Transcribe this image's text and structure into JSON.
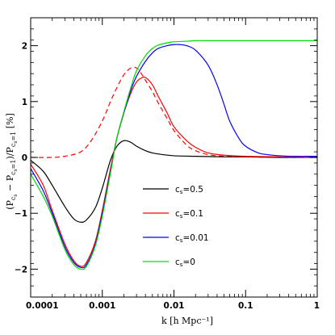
{
  "chart_data": {
    "type": "line",
    "xscale": "log",
    "xlim": [
      0.0001,
      1
    ],
    "ylim": [
      -2.5,
      2.5
    ],
    "xlabel": "k [h Mpc⁻¹]",
    "ylabel": {
      "main": "(P",
      "sub1": "c",
      "subsub1": "s",
      "mid": " − P",
      "sub2": "c",
      "subsub2": "s",
      "sub2rest": "=1",
      "mid2": ")/P",
      "sub3": "c",
      "subsub3": "s",
      "sub3rest": "=1",
      "unit": " [%]"
    },
    "xticks": [
      {
        "value": 0.0001,
        "label": "0.0001"
      },
      {
        "value": 0.001,
        "label": "0.001"
      },
      {
        "value": 0.01,
        "label": "0.01"
      },
      {
        "value": 0.1,
        "label": "0.1"
      },
      {
        "value": 1,
        "label": "1"
      }
    ],
    "yticks": [
      {
        "value": -2,
        "label": "−2"
      },
      {
        "value": -1,
        "label": "−1"
      },
      {
        "value": 0,
        "label": "0"
      },
      {
        "value": 1,
        "label": "1"
      },
      {
        "value": 2,
        "label": "2"
      }
    ],
    "legend_position": "center-right",
    "series": [
      {
        "name": "c_s=0.5",
        "legend": {
          "c": "c",
          "sub": "s",
          "rest": "=0.5"
        },
        "color": "#000000",
        "dash": false,
        "x": [
          0.0001,
          0.00015,
          0.0002,
          0.0003,
          0.0004,
          0.0005,
          0.0006,
          0.0008,
          0.001,
          0.0013,
          0.0016,
          0.002,
          0.0025,
          0.003,
          0.004,
          0.005,
          0.007,
          0.01,
          0.02,
          0.05,
          0.1,
          0.3,
          1
        ],
        "y": [
          -0.05,
          -0.25,
          -0.5,
          -0.88,
          -1.1,
          -1.16,
          -1.12,
          -0.9,
          -0.55,
          -0.05,
          0.2,
          0.3,
          0.27,
          0.2,
          0.12,
          0.08,
          0.05,
          0.03,
          0.02,
          0.01,
          0.01,
          0.0,
          0.0
        ]
      },
      {
        "name": "c_s=0.1",
        "legend": {
          "c": "c",
          "sub": "s",
          "rest": "=0.1"
        },
        "color": "#ff0000",
        "dash": false,
        "x": [
          0.0001,
          0.00015,
          0.0002,
          0.0003,
          0.0004,
          0.0005,
          0.0006,
          0.0008,
          0.001,
          0.0013,
          0.0016,
          0.002,
          0.0025,
          0.003,
          0.0035,
          0.004,
          0.005,
          0.006,
          0.008,
          0.01,
          0.015,
          0.02,
          0.03,
          0.05,
          0.1,
          0.3,
          1
        ],
        "y": [
          -0.12,
          -0.5,
          -0.95,
          -1.55,
          -1.85,
          -1.95,
          -1.88,
          -1.5,
          -0.95,
          -0.2,
          0.35,
          0.8,
          1.15,
          1.35,
          1.42,
          1.43,
          1.3,
          1.1,
          0.8,
          0.55,
          0.3,
          0.18,
          0.08,
          0.04,
          0.02,
          0.01,
          0.0
        ]
      },
      {
        "name": "c_s=0.1 (dashed)",
        "color": "#ff0000",
        "dash": true,
        "x": [
          0.0001,
          0.0002,
          0.0003,
          0.0005,
          0.0007,
          0.001,
          0.0013,
          0.0016,
          0.002,
          0.0025,
          0.003,
          0.0035,
          0.004,
          0.005,
          0.006,
          0.008,
          0.01,
          0.015,
          0.02,
          0.03,
          0.05,
          0.1,
          0.3,
          1
        ],
        "y": [
          0.0,
          0.0,
          0.02,
          0.1,
          0.3,
          0.65,
          1.0,
          1.25,
          1.48,
          1.6,
          1.6,
          1.5,
          1.38,
          1.18,
          0.98,
          0.7,
          0.48,
          0.22,
          0.12,
          0.05,
          0.02,
          0.01,
          0.0,
          0.0
        ]
      },
      {
        "name": "c_s=0.01",
        "legend": {
          "c": "c",
          "sub": "s",
          "rest": "=0.01"
        },
        "color": "#0000ff",
        "dash": false,
        "x": [
          0.0001,
          0.00015,
          0.0002,
          0.0003,
          0.0004,
          0.0005,
          0.0006,
          0.0008,
          0.001,
          0.0013,
          0.0016,
          0.002,
          0.0025,
          0.003,
          0.004,
          0.005,
          0.006,
          0.008,
          0.01,
          0.012,
          0.015,
          0.02,
          0.03,
          0.04,
          0.05,
          0.06,
          0.08,
          0.1,
          0.15,
          0.2,
          0.3,
          0.5,
          1
        ],
        "y": [
          -0.2,
          -0.6,
          -1.0,
          -1.6,
          -1.88,
          -1.97,
          -1.92,
          -1.55,
          -1.0,
          -0.25,
          0.35,
          0.8,
          1.2,
          1.45,
          1.72,
          1.87,
          1.95,
          2.0,
          2.02,
          2.02,
          2.0,
          1.92,
          1.65,
          1.3,
          0.95,
          0.65,
          0.35,
          0.2,
          0.08,
          0.05,
          0.03,
          0.02,
          0.02
        ]
      },
      {
        "name": "c_s=0",
        "legend": {
          "c": "c",
          "sub": "s",
          "rest": "=0"
        },
        "color": "#00dd00",
        "dash": false,
        "x": [
          0.0001,
          0.00015,
          0.0002,
          0.0003,
          0.0004,
          0.0005,
          0.0006,
          0.0008,
          0.001,
          0.0013,
          0.0016,
          0.002,
          0.0025,
          0.003,
          0.004,
          0.005,
          0.006,
          0.008,
          0.01,
          0.015,
          0.02,
          0.03,
          0.05,
          0.1,
          0.3,
          1
        ],
        "y": [
          -0.3,
          -0.7,
          -1.05,
          -1.65,
          -1.92,
          -2.0,
          -1.95,
          -1.58,
          -1.05,
          -0.28,
          0.35,
          0.82,
          1.25,
          1.55,
          1.82,
          1.95,
          2.01,
          2.05,
          2.07,
          2.08,
          2.09,
          2.09,
          2.09,
          2.09,
          2.09,
          2.09
        ]
      }
    ]
  }
}
